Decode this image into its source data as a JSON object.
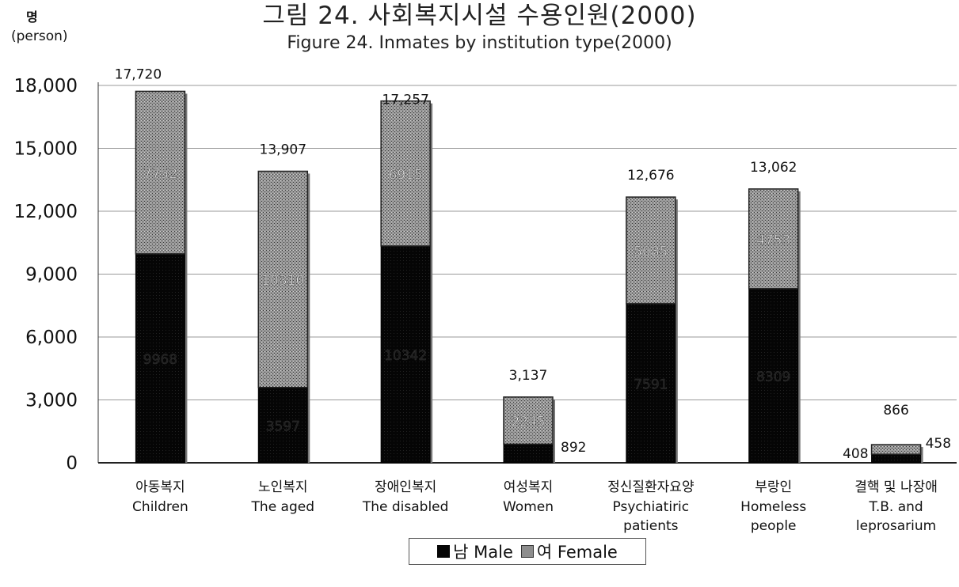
{
  "title_ko": "그림 24. 사회복지시설 수용인원(2000)",
  "title_en": "Figure 24. Inmates by institution type(2000)",
  "unit_ko": "명",
  "unit_en": "(person)",
  "colors": {
    "male": "#050505",
    "female": "#8d8d8d",
    "grid": "#999999"
  },
  "chart_data": {
    "type": "bar",
    "stacked": true,
    "title": "Figure 24. Inmates by institution type(2000)",
    "ylabel": "(person)",
    "ylim": [
      0,
      18000
    ],
    "yticks": [
      "18,000",
      "15,000",
      "12,000",
      "9,000",
      "6,000",
      "3,000",
      "0"
    ],
    "yticks_values": [
      18000,
      15000,
      12000,
      9000,
      6000,
      3000,
      0
    ],
    "categories": [
      {
        "ko": "아동복지",
        "en": [
          "Children"
        ]
      },
      {
        "ko": "노인복지",
        "en": [
          "The aged"
        ]
      },
      {
        "ko": "장애인복지",
        "en": [
          "The disabled"
        ]
      },
      {
        "ko": "여성복지",
        "en": [
          "Women"
        ]
      },
      {
        "ko": "정신질환자요양",
        "en": [
          "Psychiatiric",
          "patients"
        ]
      },
      {
        "ko": "부랑인",
        "en": [
          "Homeless",
          "people"
        ]
      },
      {
        "ko": "결핵 및 나장애",
        "en": [
          "T.B. and",
          "leprosarium"
        ]
      }
    ],
    "series": [
      {
        "name": "남 Male",
        "values": [
          9968,
          3597,
          10342,
          892,
          7591,
          8309,
          408
        ],
        "labels": [
          "9968",
          "3597",
          "10342",
          "892",
          "7591",
          "8309",
          "408"
        ]
      },
      {
        "name": "여 Female",
        "values": [
          7752,
          10310,
          6915,
          2245,
          5085,
          4753,
          458
        ],
        "labels": [
          "7752",
          "10310",
          "6915",
          "2245",
          "5085",
          "4753",
          "458"
        ]
      }
    ],
    "totals": [
      17720,
      13907,
      17257,
      3137,
      12676,
      13062,
      866
    ],
    "total_labels": [
      "17,720",
      "13,907",
      "17,257",
      "3,137",
      "12,676",
      "13,062",
      "866"
    ],
    "legend": [
      "남 Male",
      "여 Female"
    ],
    "legend_position": "bottom-center",
    "grid": true
  }
}
